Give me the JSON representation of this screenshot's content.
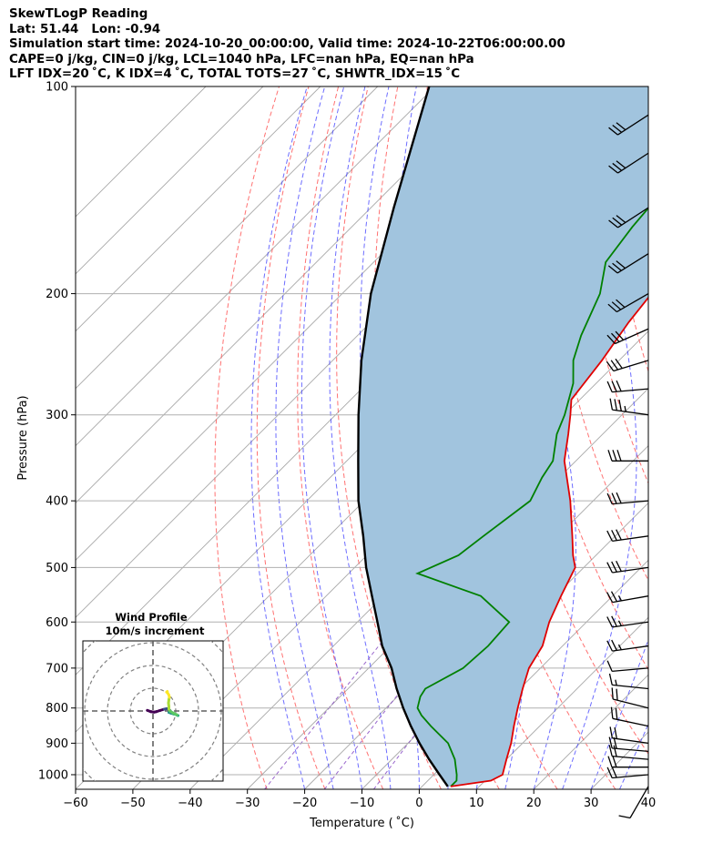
{
  "header": {
    "line1": "SkewTLogP Reading",
    "line2": "Lat: 51.44   Lon: -0.94",
    "line3": "Simulation start time: 2024-10-20_00:00:00, Valid time: 2024-10-22T06:00:00.00",
    "line4": "CAPE=0 j/kg, CIN=0 j/kg, LCL=1040 hPa, LFC=nan hPa, EQ=nan hPa",
    "line5": "LFT IDX=20 ˚C, K IDX=4 ˚C, TOTAL TOTS=27 ˚C, SHWTR_IDX=15 ˚C"
  },
  "colors": {
    "temperature": "#e00000",
    "dewpoint": "#008000",
    "parcel": "#000000",
    "cape_fill": "#a1c4de",
    "dry_adiabat": "#ff4d4d",
    "moist_adiabat": "#3c3cff",
    "mixing_ratio": "#8040c0",
    "isotherm": "#a8a8a8",
    "grid": "#b0b0b0"
  },
  "chart_data": {
    "type": "line",
    "title": "",
    "xlabel": "Temperature ( ˚C)",
    "ylabel": "Pressure (hPa)",
    "y_scale": "log",
    "xlim": [
      -60,
      40
    ],
    "ylim": [
      1050,
      100
    ],
    "x_ticks": [
      "−60",
      "−50",
      "−40",
      "−30",
      "−20",
      "−10",
      "0",
      "10",
      "20",
      "30",
      "40"
    ],
    "x_tick_values": [
      -60,
      -50,
      -40,
      -30,
      -20,
      -10,
      0,
      10,
      20,
      30,
      40
    ],
    "y_ticks": [
      "100",
      "200",
      "300",
      "400",
      "500",
      "600",
      "700",
      "800",
      "900",
      "1000"
    ],
    "y_tick_values": [
      100,
      200,
      300,
      400,
      500,
      600,
      700,
      800,
      900,
      1000
    ],
    "grid": true,
    "series": [
      {
        "name": "Temperature",
        "points": [
          [
            1040,
            5
          ],
          [
            1020,
            11
          ],
          [
            1000,
            12
          ],
          [
            950,
            10
          ],
          [
            900,
            8
          ],
          [
            850,
            5.5
          ],
          [
            800,
            3
          ],
          [
            750,
            0.5
          ],
          [
            700,
            -2
          ],
          [
            650,
            -3.5
          ],
          [
            600,
            -6.5
          ],
          [
            550,
            -9
          ],
          [
            500,
            -11.5
          ],
          [
            480,
            -14
          ],
          [
            450,
            -17.5
          ],
          [
            400,
            -24
          ],
          [
            350,
            -32
          ],
          [
            320,
            -36
          ],
          [
            300,
            -39
          ],
          [
            285,
            -41.5
          ],
          [
            250,
            -43
          ],
          [
            220,
            -45
          ],
          [
            200,
            -46
          ],
          [
            180,
            -48
          ],
          [
            160,
            -50
          ],
          [
            150,
            -51.5
          ],
          [
            130,
            -53.5
          ],
          [
            120,
            -56
          ],
          [
            110,
            -57.5
          ],
          [
            100,
            -59
          ]
        ]
      },
      {
        "name": "Dewpoint",
        "points": [
          [
            1040,
            5
          ],
          [
            1020,
            5
          ],
          [
            1000,
            4
          ],
          [
            950,
            1
          ],
          [
            900,
            -3
          ],
          [
            850,
            -9
          ],
          [
            820,
            -12.5
          ],
          [
            800,
            -14.5
          ],
          [
            770,
            -16
          ],
          [
            750,
            -16.5
          ],
          [
            700,
            -13.5
          ],
          [
            650,
            -13
          ],
          [
            600,
            -13.5
          ],
          [
            550,
            -23
          ],
          [
            510,
            -38
          ],
          [
            480,
            -34
          ],
          [
            450,
            -33
          ],
          [
            400,
            -31
          ],
          [
            370,
            -33
          ],
          [
            350,
            -34
          ],
          [
            320,
            -38
          ],
          [
            300,
            -40
          ],
          [
            270,
            -44
          ],
          [
            250,
            -48
          ],
          [
            230,
            -51
          ],
          [
            200,
            -55
          ],
          [
            180,
            -59.5
          ],
          [
            160,
            -61
          ],
          [
            150,
            -61.5
          ],
          [
            130,
            -63
          ],
          [
            120,
            -64
          ],
          [
            110,
            -64.5
          ],
          [
            100,
            -65
          ]
        ]
      },
      {
        "name": "Parcel",
        "points": [
          [
            1040,
            4.5
          ],
          [
            1000,
            1
          ],
          [
            950,
            -3.5
          ],
          [
            900,
            -8
          ],
          [
            850,
            -12.5
          ],
          [
            800,
            -17
          ],
          [
            750,
            -21.5
          ],
          [
            700,
            -26
          ],
          [
            650,
            -31.5
          ],
          [
            600,
            -36.5
          ],
          [
            550,
            -42
          ],
          [
            500,
            -48
          ],
          [
            450,
            -54
          ],
          [
            400,
            -61
          ],
          [
            350,
            -68
          ],
          [
            300,
            -76
          ],
          [
            250,
            -85
          ],
          [
            200,
            -95
          ],
          [
            150,
            -106
          ],
          [
            100,
            -121
          ]
        ]
      }
    ],
    "wind_barbs": [
      {
        "p": 1040,
        "speed": 10,
        "dir": 210
      },
      {
        "p": 1000,
        "speed": 20,
        "dir": 265
      },
      {
        "p": 975,
        "speed": 20,
        "dir": 270
      },
      {
        "p": 950,
        "speed": 20,
        "dir": 275
      },
      {
        "p": 925,
        "speed": 20,
        "dir": 275
      },
      {
        "p": 900,
        "speed": 20,
        "dir": 278
      },
      {
        "p": 850,
        "speed": 20,
        "dir": 282
      },
      {
        "p": 800,
        "speed": 20,
        "dir": 284
      },
      {
        "p": 750,
        "speed": 15,
        "dir": 276
      },
      {
        "p": 700,
        "speed": 10,
        "dir": 265
      },
      {
        "p": 650,
        "speed": 25,
        "dir": 262
      },
      {
        "p": 600,
        "speed": 25,
        "dir": 262
      },
      {
        "p": 550,
        "speed": 25,
        "dir": 260
      },
      {
        "p": 500,
        "speed": 30,
        "dir": 262
      },
      {
        "p": 450,
        "speed": 30,
        "dir": 262
      },
      {
        "p": 400,
        "speed": 30,
        "dir": 265
      },
      {
        "p": 350,
        "speed": 30,
        "dir": 270
      },
      {
        "p": 300,
        "speed": 35,
        "dir": 278
      },
      {
        "p": 275,
        "speed": 30,
        "dir": 265
      },
      {
        "p": 250,
        "speed": 30,
        "dir": 253
      },
      {
        "p": 225,
        "speed": 30,
        "dir": 246
      },
      {
        "p": 200,
        "speed": 30,
        "dir": 240
      },
      {
        "p": 175,
        "speed": 30,
        "dir": 238
      },
      {
        "p": 150,
        "speed": 30,
        "dir": 237
      },
      {
        "p": 125,
        "speed": 30,
        "dir": 237
      },
      {
        "p": 110,
        "speed": 30,
        "dir": 237
      }
    ],
    "hodograph": {
      "title_line1": "Wind Profile",
      "title_line2": "10m/s increment",
      "ring_step_ms": 10,
      "rings": 3,
      "trace_uv_ms": [
        [
          -2.5,
          0.3
        ],
        [
          -1.0,
          -0.3
        ],
        [
          0.5,
          -0.5
        ],
        [
          1.5,
          -0.3
        ],
        [
          3.0,
          0.2
        ],
        [
          5.0,
          0.8
        ],
        [
          6.0,
          1.0
        ],
        [
          7.0,
          0.7
        ],
        [
          7.5,
          0.2
        ],
        [
          7.8,
          -0.3
        ],
        [
          7.5,
          -0.7
        ],
        [
          7.0,
          -0.6
        ],
        [
          8.0,
          -1.0
        ],
        [
          9.0,
          -1.3
        ],
        [
          10.0,
          -1.5
        ],
        [
          10.5,
          -1.8
        ],
        [
          11.0,
          -2.0
        ],
        [
          10.5,
          -1.7
        ],
        [
          9.5,
          -1.2
        ],
        [
          8.5,
          -0.7
        ],
        [
          7.5,
          -0.1
        ],
        [
          7.0,
          0.8
        ],
        [
          7.0,
          2.0
        ],
        [
          6.8,
          3.5
        ],
        [
          7.0,
          5.0
        ],
        [
          7.2,
          6.0
        ],
        [
          7.0,
          7.0
        ],
        [
          6.5,
          7.8
        ],
        [
          6.0,
          8.3
        ],
        [
          6.3,
          8.6
        ]
      ]
    }
  }
}
